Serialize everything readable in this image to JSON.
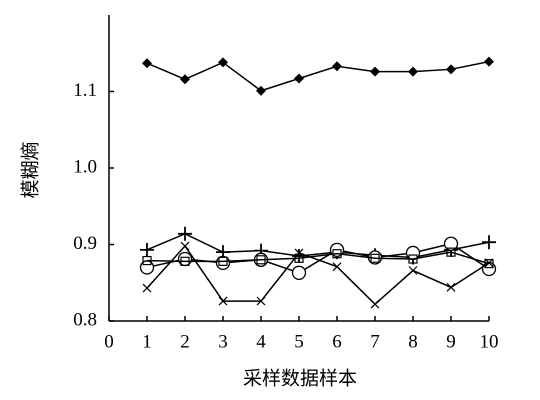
{
  "chart_data": {
    "type": "line",
    "y_label": "模糊熵",
    "x_label": "采样数据样本",
    "x": [
      1,
      2,
      3,
      4,
      5,
      6,
      7,
      8,
      9,
      10
    ],
    "series": [
      {
        "color": "#000000",
        "marker": "diamond",
        "values": [
          1.137,
          1.116,
          1.138,
          1.101,
          1.117,
          1.133,
          1.126,
          1.126,
          1.129,
          1.139
        ]
      },
      {
        "color": "#000000",
        "marker": "plus",
        "values": [
          0.893,
          0.914,
          0.89,
          0.892,
          0.885,
          0.89,
          0.886,
          0.883,
          0.893,
          0.903
        ]
      },
      {
        "color": "#000000",
        "marker": "circle",
        "values": [
          0.87,
          0.881,
          0.876,
          0.88,
          0.863,
          0.893,
          0.883,
          0.889,
          0.901,
          0.868
        ]
      },
      {
        "color": "#000000",
        "marker": "cross",
        "values": [
          0.843,
          0.898,
          0.826,
          0.826,
          0.889,
          0.871,
          0.822,
          0.866,
          0.844,
          0.876
        ]
      },
      {
        "color": "#000000",
        "marker": "square",
        "values": [
          0.879,
          0.878,
          0.878,
          0.88,
          0.882,
          0.888,
          0.882,
          0.881,
          0.89,
          0.875
        ]
      }
    ],
    "xlim": [
      0,
      10
    ],
    "xticks": [
      0,
      1,
      2,
      3,
      4,
      5,
      6,
      7,
      8,
      9,
      10
    ],
    "ylim": [
      0.8,
      1.2
    ],
    "yticks": [
      0.8,
      0.9,
      {
        "value": 1,
        "label": "1.0"
      },
      1.1
    ],
    "grid": false
  }
}
